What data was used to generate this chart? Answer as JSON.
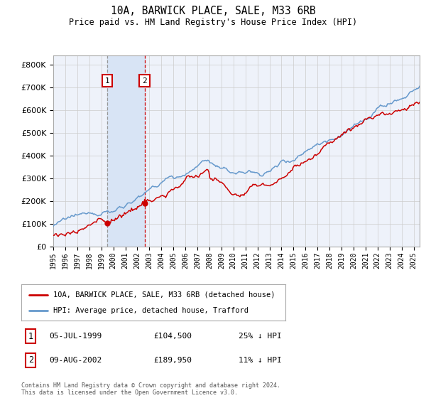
{
  "title": "10A, BARWICK PLACE, SALE, M33 6RB",
  "subtitle": "Price paid vs. HM Land Registry's House Price Index (HPI)",
  "legend_label_red": "10A, BARWICK PLACE, SALE, M33 6RB (detached house)",
  "legend_label_blue": "HPI: Average price, detached house, Trafford",
  "sale1_date_label": "05-JUL-1999",
  "sale1_price": 104500,
  "sale1_price_label": "£104,500",
  "sale1_hpi_label": "25% ↓ HPI",
  "sale1_year": 1999.5,
  "sale2_date_label": "09-AUG-2002",
  "sale2_price": 189950,
  "sale2_price_label": "£189,950",
  "sale2_hpi_label": "11% ↓ HPI",
  "sale2_year": 2002.6,
  "footer": "Contains HM Land Registry data © Crown copyright and database right 2024.\nThis data is licensed under the Open Government Licence v3.0.",
  "ylim_max": 840000,
  "xlim_start": 1995.0,
  "xlim_end": 2025.5,
  "plot_bg_color": "#eef2fa",
  "red_color": "#cc0000",
  "blue_color": "#6699cc",
  "shade_color": "#d8e4f5",
  "vline1_color": "#999999",
  "vline2_color": "#cc0000"
}
